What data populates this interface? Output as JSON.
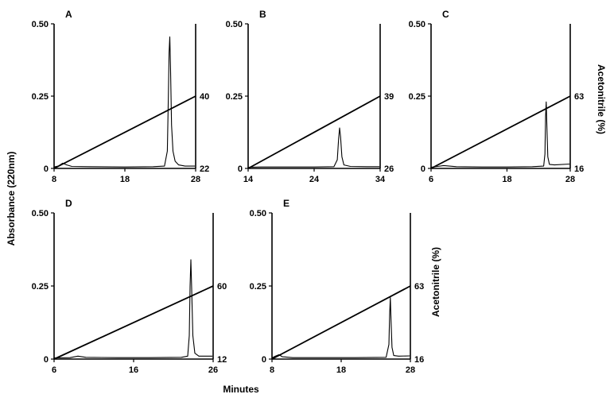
{
  "chart_data": {
    "type": "line",
    "xlabel": "Minutes",
    "ylabel": "Absorbance (220nm)",
    "y2label": "Acetonitrile (%)",
    "y_ticks": [
      "0",
      "0.25",
      "0.50"
    ],
    "ylim": [
      0,
      0.5
    ],
    "grid": false,
    "panels": [
      {
        "label": "A",
        "x_ticks": [
          "8",
          "18",
          "28"
        ],
        "xlim": [
          8,
          28
        ],
        "acetonitrile_start": "22",
        "acetonitrile_end": "40",
        "absorbance": [
          [
            8,
            0.005
          ],
          [
            8.6,
            0.008
          ],
          [
            9.2,
            0.018
          ],
          [
            9.8,
            0.012
          ],
          [
            10.5,
            0.007
          ],
          [
            13,
            0.006
          ],
          [
            18,
            0.005
          ],
          [
            22,
            0.006
          ],
          [
            23.6,
            0.008
          ],
          [
            24.0,
            0.06
          ],
          [
            24.15,
            0.25
          ],
          [
            24.25,
            0.4
          ],
          [
            24.35,
            0.455
          ],
          [
            24.45,
            0.35
          ],
          [
            24.6,
            0.15
          ],
          [
            24.8,
            0.06
          ],
          [
            25.1,
            0.025
          ],
          [
            25.6,
            0.012
          ],
          [
            26.5,
            0.008
          ],
          [
            27.9,
            0.008
          ]
        ],
        "acetonitrile_line": [
          [
            8,
            0
          ],
          [
            28,
            0.25
          ]
        ]
      },
      {
        "label": "B",
        "x_ticks": [
          "14",
          "24",
          "34"
        ],
        "xlim": [
          14,
          34
        ],
        "acetonitrile_start": "26",
        "acetonitrile_end": "39",
        "absorbance": [
          [
            14,
            0.004
          ],
          [
            16,
            0.005
          ],
          [
            20,
            0.005
          ],
          [
            24,
            0.005
          ],
          [
            27,
            0.006
          ],
          [
            27.5,
            0.03
          ],
          [
            27.7,
            0.1
          ],
          [
            27.85,
            0.14
          ],
          [
            28.0,
            0.11
          ],
          [
            28.2,
            0.04
          ],
          [
            28.5,
            0.012
          ],
          [
            29.5,
            0.007
          ],
          [
            32,
            0.006
          ],
          [
            33.9,
            0.006
          ]
        ],
        "acetonitrile_line": [
          [
            14,
            0
          ],
          [
            34,
            0.25
          ]
        ]
      },
      {
        "label": "C",
        "x_ticks": [
          "6",
          "18",
          "28"
        ],
        "xlim": [
          6,
          28
        ],
        "acetonitrile_start": "16",
        "acetonitrile_end": "63",
        "absorbance": [
          [
            6,
            0.004
          ],
          [
            7,
            0.007
          ],
          [
            8,
            0.01
          ],
          [
            10,
            0.006
          ],
          [
            14,
            0.005
          ],
          [
            18,
            0.005
          ],
          [
            22,
            0.006
          ],
          [
            23.8,
            0.008
          ],
          [
            24.0,
            0.05
          ],
          [
            24.1,
            0.18
          ],
          [
            24.2,
            0.23
          ],
          [
            24.3,
            0.15
          ],
          [
            24.45,
            0.04
          ],
          [
            24.7,
            0.014
          ],
          [
            25.5,
            0.012
          ],
          [
            27.9,
            0.015
          ]
        ],
        "acetonitrile_line": [
          [
            6,
            0
          ],
          [
            28,
            0.25
          ]
        ]
      },
      {
        "label": "D",
        "x_ticks": [
          "6",
          "16",
          "26"
        ],
        "xlim": [
          6,
          26
        ],
        "acetonitrile_start": "12",
        "acetonitrile_end": "60",
        "absorbance": [
          [
            6,
            0.004
          ],
          [
            8,
            0.005
          ],
          [
            9,
            0.01
          ],
          [
            10,
            0.006
          ],
          [
            14,
            0.005
          ],
          [
            18,
            0.005
          ],
          [
            22,
            0.006
          ],
          [
            22.8,
            0.01
          ],
          [
            23.0,
            0.08
          ],
          [
            23.1,
            0.25
          ],
          [
            23.2,
            0.34
          ],
          [
            23.3,
            0.24
          ],
          [
            23.45,
            0.08
          ],
          [
            23.7,
            0.02
          ],
          [
            24.2,
            0.01
          ],
          [
            25.9,
            0.01
          ]
        ],
        "acetonitrile_line": [
          [
            6,
            0
          ],
          [
            26,
            0.25
          ]
        ]
      },
      {
        "label": "E",
        "x_ticks": [
          "8",
          "18",
          "28"
        ],
        "xlim": [
          8,
          28
        ],
        "acetonitrile_start": "16",
        "acetonitrile_end": "63",
        "absorbance": [
          [
            8,
            0.004
          ],
          [
            8.5,
            0.01
          ],
          [
            9.0,
            0.015
          ],
          [
            9.5,
            0.008
          ],
          [
            11,
            0.005
          ],
          [
            15,
            0.005
          ],
          [
            20,
            0.005
          ],
          [
            24.5,
            0.006
          ],
          [
            24.9,
            0.05
          ],
          [
            25.0,
            0.15
          ],
          [
            25.1,
            0.21
          ],
          [
            25.2,
            0.14
          ],
          [
            25.35,
            0.04
          ],
          [
            25.6,
            0.012
          ],
          [
            26.3,
            0.01
          ],
          [
            27.9,
            0.011
          ]
        ],
        "acetonitrile_line": [
          [
            8,
            0
          ],
          [
            28,
            0.25
          ]
        ]
      }
    ]
  }
}
